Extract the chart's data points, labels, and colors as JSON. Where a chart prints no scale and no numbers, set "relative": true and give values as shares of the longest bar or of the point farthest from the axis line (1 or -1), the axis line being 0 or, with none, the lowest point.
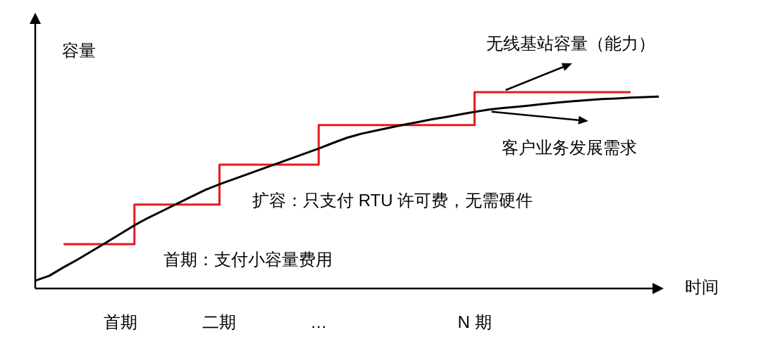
{
  "chart_data": {
    "type": "line",
    "relative": true,
    "xlabel": "时间",
    "ylabel": "容量",
    "categories": [
      null,
      null,
      null,
      null,
      null,
      null,
      "首期",
      null,
      null,
      null,
      null,
      null,
      null,
      "二期",
      null,
      null,
      null,
      null,
      null,
      null,
      "…",
      null,
      null,
      null,
      null,
      null,
      null,
      null,
      null,
      null,
      null,
      "N 期",
      null,
      null,
      null,
      null,
      null,
      null,
      null,
      null,
      null,
      null,
      null,
      null,
      null
    ],
    "grid": false,
    "marker": "none",
    "series": [
      {
        "name": "无线基站容量（能力）",
        "type": "step",
        "color": "#e8191d",
        "values": [
          null,
          null,
          0.226,
          0.226,
          0.226,
          0.226,
          0.226,
          0.427,
          0.427,
          0.427,
          0.427,
          0.427,
          0.427,
          0.631,
          0.631,
          0.631,
          0.631,
          0.631,
          0.631,
          0.631,
          0.832,
          0.832,
          0.832,
          0.832,
          0.832,
          0.832,
          0.832,
          0.832,
          0.832,
          0.832,
          0.832,
          1.0,
          1.0,
          1.0,
          1.0,
          1.0,
          1.0,
          1.0,
          1.0,
          1.0,
          1.0,
          1.0,
          1.0,
          null,
          null
        ]
      },
      {
        "name": "客户业务发展需求",
        "type": "line",
        "color": "#000000",
        "values": [
          0.04,
          0.065,
          0.108,
          0.148,
          0.191,
          0.234,
          0.278,
          0.322,
          0.361,
          0.396,
          0.432,
          0.467,
          0.502,
          0.531,
          0.557,
          0.583,
          0.609,
          0.635,
          0.661,
          0.687,
          0.713,
          0.741,
          0.768,
          0.788,
          0.804,
          0.819,
          0.834,
          0.848,
          0.862,
          0.874,
          0.887,
          0.9,
          0.911,
          0.919,
          0.926,
          0.933,
          0.941,
          0.948,
          0.954,
          0.96,
          0.965,
          0.968,
          0.972,
          0.975,
          0.978
        ]
      }
    ],
    "annotations": [
      "扩容：只支付 RTU 许可费，无需硬件",
      "首期：支付小容量费用"
    ]
  }
}
